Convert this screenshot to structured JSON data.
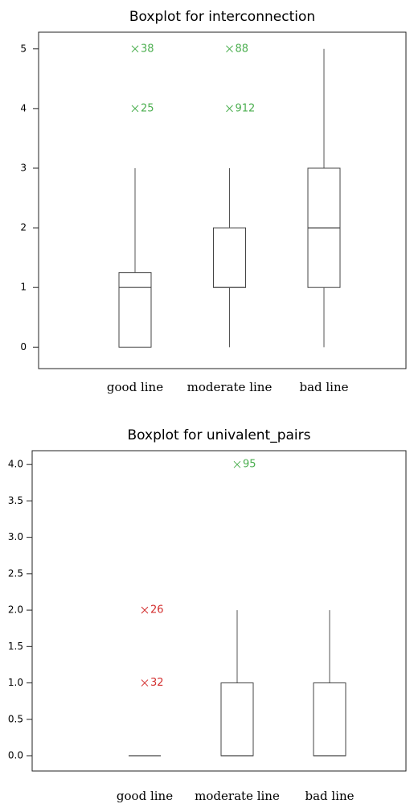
{
  "chart_data": [
    {
      "type": "box",
      "title": "Boxplot for interconnection",
      "categories": [
        "good line",
        "moderate line",
        "bad line"
      ],
      "boxes": [
        {
          "low": 0,
          "q1": 0,
          "median": 1,
          "q3": 1.25,
          "high": 3,
          "outliers": [
            {
              "value": 4,
              "label": "25",
              "color": "#4caf50"
            },
            {
              "value": 5,
              "label": "38",
              "color": "#4caf50"
            }
          ]
        },
        {
          "low": 0,
          "q1": 1,
          "median": 1,
          "q3": 2,
          "high": 3,
          "outliers": [
            {
              "value": 4,
              "label": "912",
              "color": "#4caf50"
            },
            {
              "value": 5,
              "label": "88",
              "color": "#4caf50"
            }
          ]
        },
        {
          "low": 0,
          "q1": 1,
          "median": 2,
          "q3": 3,
          "high": 5,
          "outliers": []
        }
      ],
      "ylim": [
        -0.36,
        5.28
      ],
      "yticks": [
        0,
        1,
        2,
        3,
        4,
        5
      ]
    },
    {
      "type": "box",
      "title": "Boxplot for univalent_pairs",
      "categories": [
        "good line",
        "moderate line",
        "bad line"
      ],
      "boxes": [
        {
          "low": 0,
          "q1": 0,
          "median": 0,
          "q3": 0,
          "high": 0,
          "outliers": [
            {
              "value": 1,
              "label": "32",
              "color": "#d32f2f"
            },
            {
              "value": 2,
              "label": "26",
              "color": "#d32f2f"
            }
          ]
        },
        {
          "low": 0,
          "q1": 0,
          "median": 0,
          "q3": 1,
          "high": 2,
          "outliers": [
            {
              "value": 4,
              "label": "95",
              "color": "#4caf50"
            }
          ]
        },
        {
          "low": 0,
          "q1": 0,
          "median": 0,
          "q3": 1,
          "high": 2,
          "outliers": []
        }
      ],
      "ylim": [
        -0.21,
        4.19
      ],
      "yticks": [
        {
          "value": 0,
          "label": "0.0"
        },
        {
          "value": 0.5,
          "label": "0.5"
        },
        {
          "value": 1,
          "label": "1.0"
        },
        {
          "value": 1.5,
          "label": "1.5"
        },
        {
          "value": 2,
          "label": "2.0"
        },
        {
          "value": 2.5,
          "label": "2.5"
        },
        {
          "value": 3,
          "label": "3.0"
        },
        {
          "value": 3.5,
          "label": "3.5"
        },
        {
          "value": 4,
          "label": "4.0"
        }
      ]
    }
  ]
}
